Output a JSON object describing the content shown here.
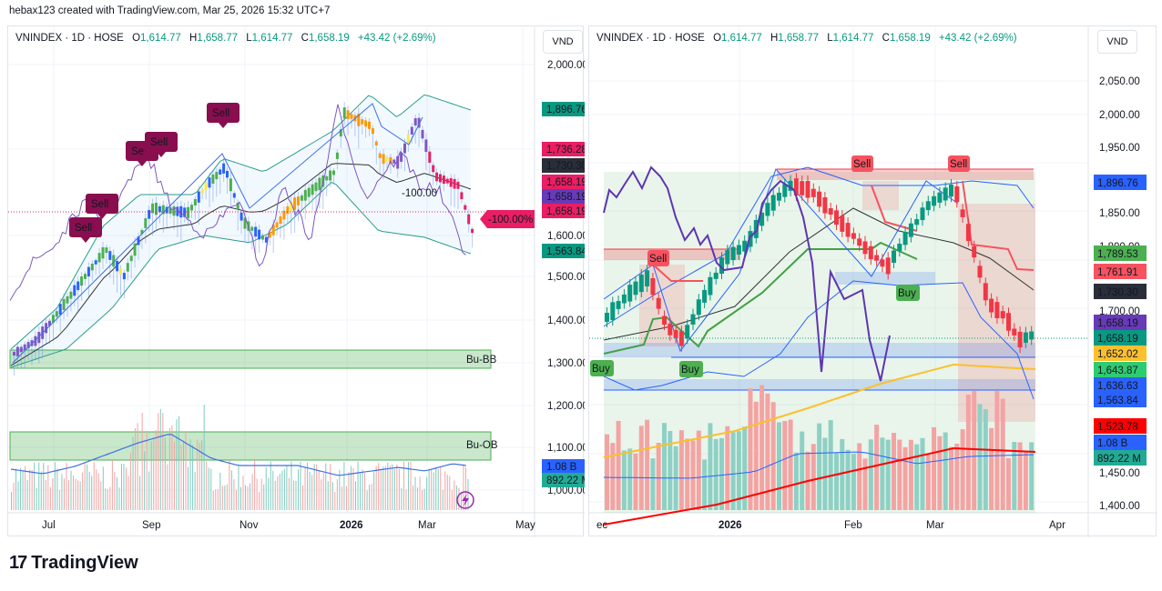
{
  "credit": "hebax123 created with TradingView.com, Mar 25, 2026 15:32 UTC+7",
  "footer": {
    "logo_mark": "17",
    "logo_text": "TradingView"
  },
  "colors": {
    "up": "#089981",
    "down": "#f23645",
    "accent_blue": "#2962ff"
  },
  "charts": [
    {
      "symbol": "VNINDEX · 1D · HOSE",
      "ohlc": {
        "o_label": "O",
        "o": "1,614.77",
        "h_label": "H",
        "h": "1,658.77",
        "l_label": "L",
        "l": "1,614.77",
        "c_label": "C",
        "c": "1,658.19",
        "change": "+43.42 (+2.69%)"
      },
      "currency": "VND",
      "y_ticks": [
        "2,000.00",
        "1,600.00",
        "1,500.00",
        "1,400.00",
        "1,300.00",
        "1,200.00",
        "1,100.00",
        "1,000.00"
      ],
      "x_ticks": [
        "Jul",
        "Sep",
        "Nov",
        "2026",
        "Mar",
        "May"
      ],
      "price_tags": [
        {
          "value": "1,896.76",
          "color": "#089981"
        },
        {
          "value": "1,736.28",
          "color": "#e91e63"
        },
        {
          "value": "1,730.30",
          "color": "#2a2e39"
        },
        {
          "value": "1,658.19",
          "color": "#e91e63"
        },
        {
          "value": "1,658.19",
          "color": "#673ab7"
        },
        {
          "value": "1,658.19",
          "color": "#e91e63"
        },
        {
          "value": "1,563.84",
          "color": "#089981"
        },
        {
          "value": "1.08 B",
          "color": "#2962ff"
        },
        {
          "value": "892.22 M",
          "color": "#22ab94"
        }
      ],
      "signals": [
        {
          "label": "Sell"
        },
        {
          "label": "Sell"
        },
        {
          "label": "Se"
        },
        {
          "label": "Sell"
        },
        {
          "label": "Sell"
        }
      ],
      "zones": [
        {
          "label": "Bu-BB"
        },
        {
          "label": "Bu-OB"
        }
      ],
      "indicator_label": "-100.00",
      "indicator_tag": "-100.00%"
    },
    {
      "symbol": "VNINDEX · 1D · HOSE",
      "ohlc": {
        "o_label": "O",
        "o": "1,614.77",
        "h_label": "H",
        "h": "1,658.77",
        "l_label": "L",
        "l": "1,614.77",
        "c_label": "C",
        "c": "1,658.19",
        "change": "+43.42 (+2.69%)"
      },
      "currency": "VND",
      "y_ticks": [
        "2,050.00",
        "2,000.00",
        "1,950.00",
        "1,850.00",
        "1,800.00",
        "1,700.00",
        "1,450.00",
        "1,400.00"
      ],
      "x_ticks": [
        "ec",
        "2026",
        "Feb",
        "Mar",
        "Apr"
      ],
      "price_tags": [
        {
          "value": "1,896.76",
          "color": "#2962ff"
        },
        {
          "value": "1,789.53",
          "color": "#4caf50"
        },
        {
          "value": "1,761.91",
          "color": "#f7525f"
        },
        {
          "value": "1,730.30",
          "color": "#2a2e39"
        },
        {
          "value": "1,658.19",
          "color": "#673ab7"
        },
        {
          "value": "1,658.19",
          "color": "#089981"
        },
        {
          "value": "1,652.02",
          "color": "#fbc02d"
        },
        {
          "value": "1,643.87",
          "color": "#2ecc71"
        },
        {
          "value": "1,636.63",
          "color": "#2962ff"
        },
        {
          "value": "1,563.84",
          "color": "#2962ff"
        },
        {
          "value": "1,523.78",
          "color": "#ff0000"
        },
        {
          "value": "1.08 B",
          "color": "#2962ff"
        },
        {
          "value": "892.22 M",
          "color": "#22ab94"
        }
      ],
      "signals": [
        {
          "label": "Sell"
        },
        {
          "label": "Sell"
        },
        {
          "label": "Sell"
        },
        {
          "label": "Buy"
        },
        {
          "label": "Buy"
        },
        {
          "label": "Buy"
        }
      ]
    }
  ]
}
